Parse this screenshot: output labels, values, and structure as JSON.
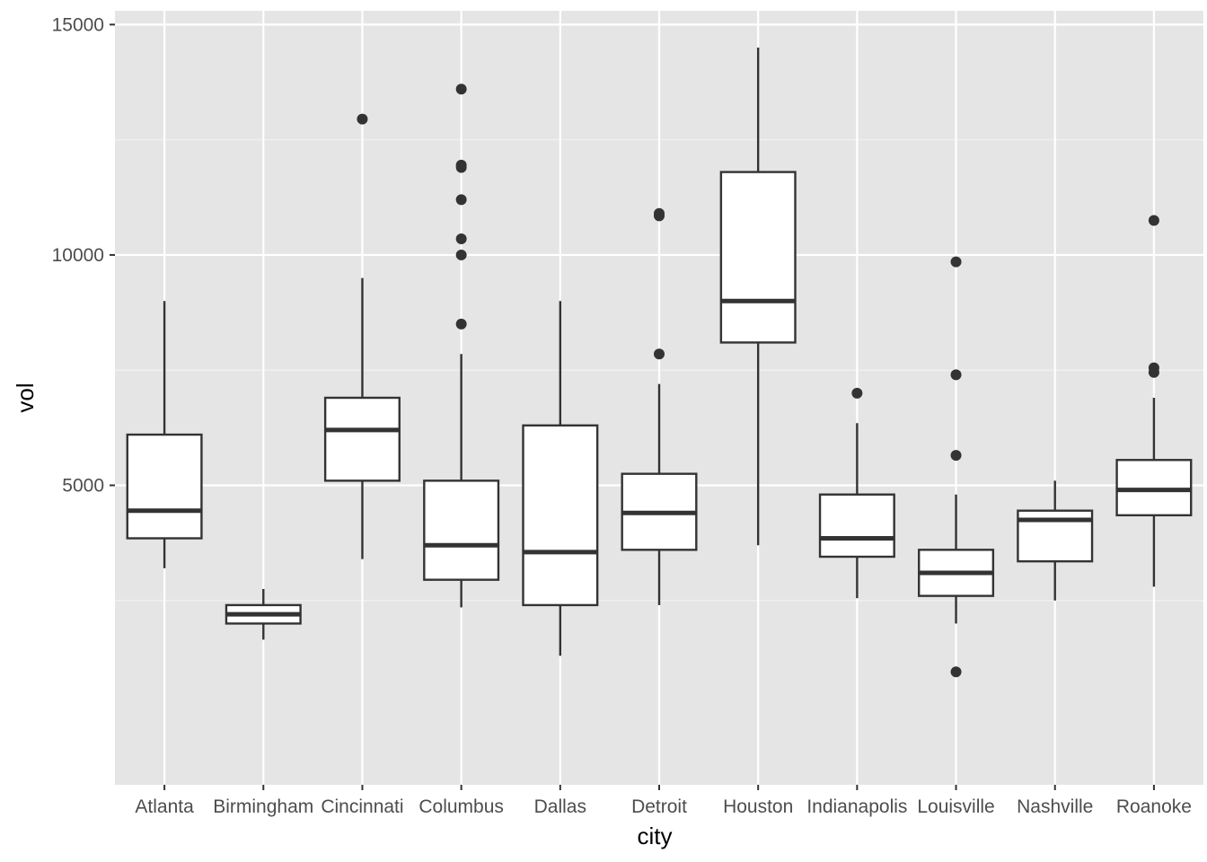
{
  "chart_data": {
    "type": "boxplot",
    "xlabel": "city",
    "ylabel": "vol",
    "ylim": [
      -1500,
      15300
    ],
    "y_ticks": [
      5000,
      10000,
      15000
    ],
    "y_minor_ticks": [
      2500,
      7500,
      12500
    ],
    "grid": true,
    "categories": [
      "Atlanta",
      "Birmingham",
      "Cincinnati",
      "Columbus",
      "Dallas",
      "Detroit",
      "Houston",
      "Indianapolis",
      "Louisville",
      "Nashville",
      "Roanoke"
    ],
    "boxes": [
      {
        "category": "Atlanta",
        "whisker_low": 3200,
        "q1": 3850,
        "median": 4450,
        "q3": 6100,
        "whisker_high": 9000,
        "outliers": []
      },
      {
        "category": "Birmingham",
        "whisker_low": 1650,
        "q1": 2000,
        "median": 2200,
        "q3": 2400,
        "whisker_high": 2750,
        "outliers": []
      },
      {
        "category": "Cincinnati",
        "whisker_low": 3400,
        "q1": 5100,
        "median": 6200,
        "q3": 6900,
        "whisker_high": 9500,
        "outliers": [
          12950
        ]
      },
      {
        "category": "Columbus",
        "whisker_low": 2350,
        "q1": 2950,
        "median": 3700,
        "q3": 5100,
        "whisker_high": 7850,
        "outliers": [
          8500,
          10000,
          10350,
          11200,
          11900,
          11950,
          13600
        ]
      },
      {
        "category": "Dallas",
        "whisker_low": 1300,
        "q1": 2400,
        "median": 3550,
        "q3": 6300,
        "whisker_high": 9000,
        "outliers": []
      },
      {
        "category": "Detroit",
        "whisker_low": 2400,
        "q1": 3600,
        "median": 4400,
        "q3": 5250,
        "whisker_high": 7200,
        "outliers": [
          7850,
          10850,
          10900
        ]
      },
      {
        "category": "Houston",
        "whisker_low": 3700,
        "q1": 8100,
        "median": 9000,
        "q3": 11800,
        "whisker_high": 14500,
        "outliers": []
      },
      {
        "category": "Indianapolis",
        "whisker_low": 2550,
        "q1": 3450,
        "median": 3850,
        "q3": 4800,
        "whisker_high": 6350,
        "outliers": [
          7000
        ]
      },
      {
        "category": "Louisville",
        "whisker_low": 2000,
        "q1": 2600,
        "median": 3100,
        "q3": 3600,
        "whisker_high": 4800,
        "outliers": [
          950,
          5650,
          7400,
          9850
        ]
      },
      {
        "category": "Nashville",
        "whisker_low": 2500,
        "q1": 3350,
        "median": 4250,
        "q3": 4450,
        "whisker_high": 5100,
        "outliers": []
      },
      {
        "category": "Roanoke",
        "whisker_low": 2800,
        "q1": 4350,
        "median": 4900,
        "q3": 5550,
        "whisker_high": 6900,
        "outliers": [
          7450,
          7550,
          10750
        ]
      }
    ]
  }
}
